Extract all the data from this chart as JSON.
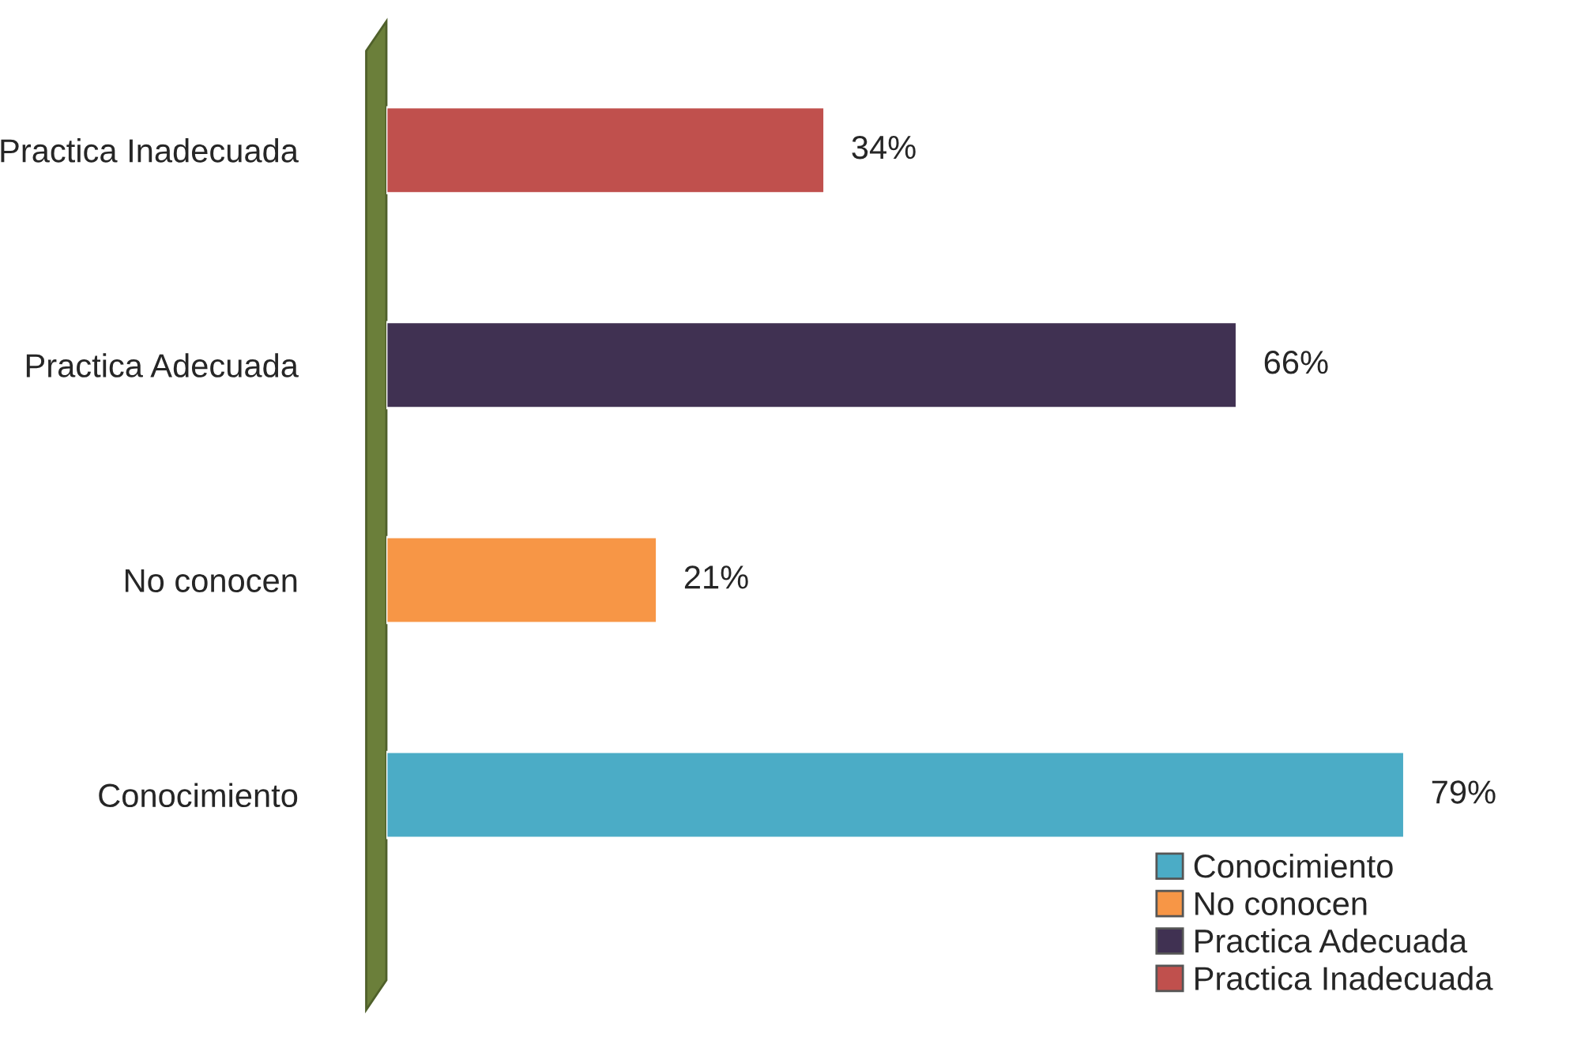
{
  "chart_data": {
    "type": "bar",
    "orientation": "horizontal",
    "stacked": true,
    "categories": [
      "Practica Inadecuada",
      "Practica Adecuada",
      "No conocen",
      "Conocimiento"
    ],
    "series": [
      {
        "name": "Conocimiento",
        "color": "#4bacc6",
        "values": [
          null,
          null,
          null,
          79
        ],
        "value_labels": [
          null,
          null,
          null,
          "79%"
        ]
      },
      {
        "name": "No conocen",
        "color": "#f79646",
        "values": [
          null,
          null,
          21,
          null
        ],
        "value_labels": [
          null,
          null,
          "21%",
          null
        ]
      },
      {
        "name": "Practica Adecuada",
        "color": "#403152",
        "values": [
          null,
          66,
          null,
          null
        ],
        "value_labels": [
          null,
          "66%",
          null,
          null
        ]
      },
      {
        "name": "Practica Inadecuada",
        "color": "#c0504d",
        "values": [
          34,
          null,
          null,
          null
        ],
        "value_labels": [
          "34%",
          null,
          null,
          null
        ]
      }
    ],
    "tick_labels": "y",
    "grid": false,
    "legend": "bottom right"
  }
}
